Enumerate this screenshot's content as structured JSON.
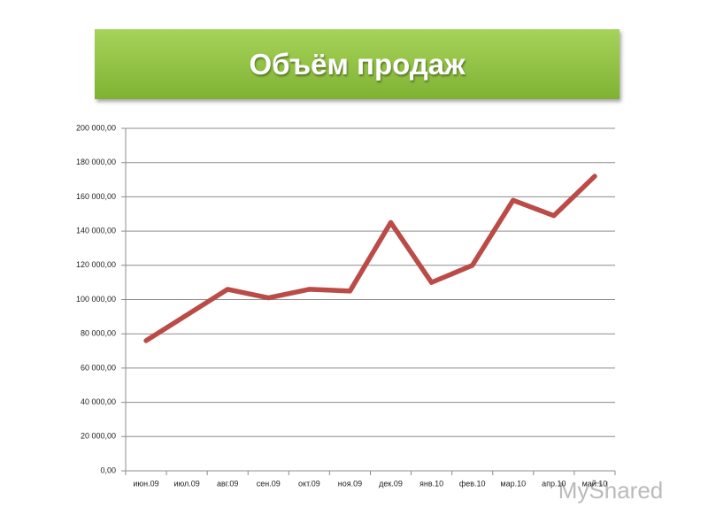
{
  "chart_data": {
    "type": "line",
    "title": "Объём продаж",
    "categories": [
      "июн.09",
      "июл.09",
      "авг.09",
      "сен.09",
      "окт.09",
      "ноя.09",
      "дек.09",
      "янв.10",
      "фев.10",
      "мар.10",
      "апр.10",
      "май.10"
    ],
    "series": [
      {
        "name": "Объём продаж",
        "color": "#bb4b47",
        "values": [
          76000,
          91000,
          106000,
          101000,
          106000,
          105000,
          145000,
          110000,
          120000,
          158000,
          149000,
          172000
        ]
      }
    ],
    "ylim": [
      0,
      200000
    ],
    "yticks": [
      {
        "value": 0,
        "label": "0,00"
      },
      {
        "value": 20000,
        "label": "20 000,00"
      },
      {
        "value": 40000,
        "label": "40 000,00"
      },
      {
        "value": 60000,
        "label": "60 000,00"
      },
      {
        "value": 80000,
        "label": "80 000,00"
      },
      {
        "value": 100000,
        "label": "100 000,00"
      },
      {
        "value": 120000,
        "label": "120 000,00"
      },
      {
        "value": 140000,
        "label": "140 000,00"
      },
      {
        "value": 160000,
        "label": "160 000,00"
      },
      {
        "value": 180000,
        "label": "180 000,00"
      },
      {
        "value": 200000,
        "label": "200 000,00"
      }
    ],
    "grid": true
  },
  "watermark": "MyShared"
}
